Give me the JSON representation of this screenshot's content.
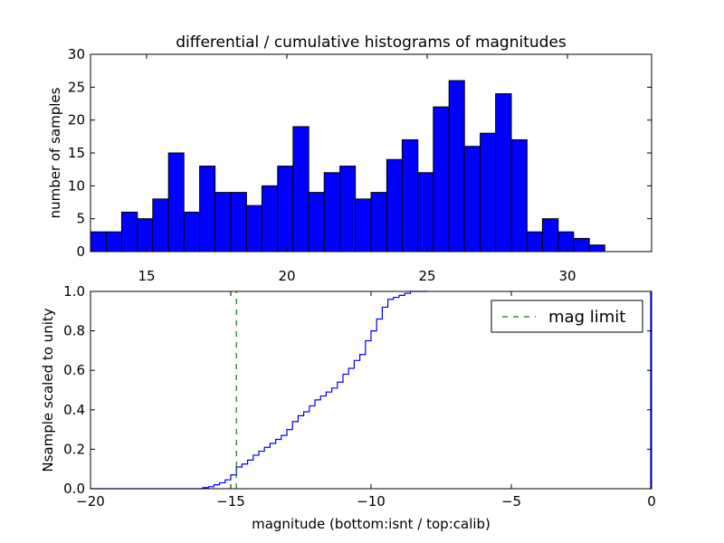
{
  "chart_data": [
    {
      "type": "bar",
      "title": "differential / cumulative histograms of magnitudes",
      "xlabel": "",
      "ylabel": "number of samples",
      "xlim": [
        13.0,
        33.0
      ],
      "ylim": [
        0,
        30
      ],
      "xticks": [
        "15",
        "20",
        "25",
        "30"
      ],
      "yticks": [
        "0",
        "5",
        "10",
        "15",
        "20",
        "25",
        "30"
      ],
      "bin_edges": [
        13.0,
        13.56,
        14.11,
        14.67,
        15.22,
        15.78,
        16.33,
        16.89,
        17.44,
        18.0,
        18.56,
        19.11,
        19.67,
        20.22,
        20.78,
        21.33,
        21.89,
        22.44,
        23.0,
        23.56,
        24.11,
        24.67,
        25.22,
        25.78,
        26.33,
        26.89,
        27.44,
        28.0,
        28.56,
        29.11,
        29.67,
        30.22,
        30.78,
        31.33
      ],
      "values": [
        3,
        3,
        6,
        5,
        8,
        15,
        6,
        13,
        9,
        9,
        7,
        10,
        13,
        19,
        9,
        12,
        13,
        8,
        9,
        14,
        17,
        12,
        22,
        26,
        16,
        18,
        24,
        17,
        3,
        5,
        3,
        2,
        1
      ],
      "color": "#0000ff",
      "grid": false
    },
    {
      "type": "line",
      "title": "",
      "xlabel": "magnitude (bottom:isnt / top:calib)",
      "ylabel": "Nsample scaled to unity",
      "xlim": [
        -20,
        0
      ],
      "ylim": [
        0.0,
        1.0
      ],
      "xticks": [
        "−20",
        "−15",
        "−10",
        "−5",
        "0"
      ],
      "yticks": [
        "0.0",
        "0.2",
        "0.4",
        "0.6",
        "0.8",
        "1.0"
      ],
      "series": [
        {
          "color": "#0000ff",
          "style": "steps",
          "x": [
            -20.0,
            -16.0,
            -15.8,
            -15.6,
            -15.4,
            -15.2,
            -15.0,
            -14.8,
            -14.6,
            -14.4,
            -14.2,
            -14.0,
            -13.8,
            -13.6,
            -13.4,
            -13.2,
            -13.0,
            -12.8,
            -12.6,
            -12.4,
            -12.2,
            -12.0,
            -11.8,
            -11.6,
            -11.4,
            -11.2,
            -11.0,
            -10.8,
            -10.6,
            -10.4,
            -10.2,
            -10.0,
            -9.8,
            -9.6,
            -9.4,
            -9.2,
            -9.0,
            -8.8,
            -8.6,
            -8.4,
            -8.2
          ],
          "y": [
            0.0,
            0.005,
            0.01,
            0.02,
            0.03,
            0.045,
            0.07,
            0.11,
            0.125,
            0.145,
            0.17,
            0.19,
            0.21,
            0.23,
            0.25,
            0.27,
            0.3,
            0.34,
            0.37,
            0.39,
            0.42,
            0.45,
            0.47,
            0.49,
            0.51,
            0.54,
            0.58,
            0.61,
            0.65,
            0.68,
            0.75,
            0.8,
            0.86,
            0.92,
            0.96,
            0.97,
            0.98,
            0.99,
            1.0,
            1.0,
            1.0
          ]
        },
        {
          "name": "mag limit",
          "color": "#008000",
          "style": "dashed-vertical",
          "x": [
            -14.8,
            -14.8
          ],
          "y": [
            0.0,
            1.0
          ]
        }
      ],
      "legend": {
        "placement": "upper right",
        "entries": [
          "mag limit"
        ]
      },
      "grid": false
    }
  ]
}
